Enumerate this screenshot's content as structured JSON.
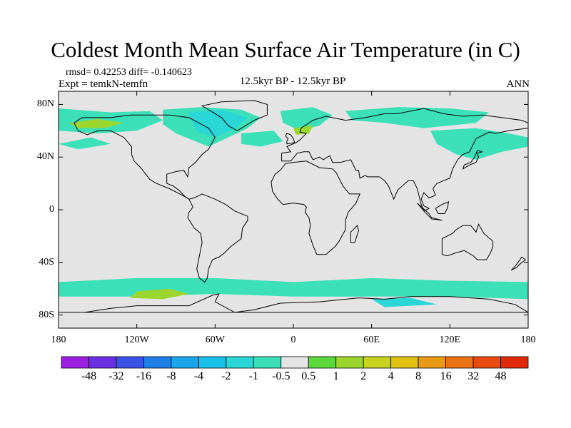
{
  "title": "Coldest Month Mean Surface Air Temperature (in C)",
  "stats": "rmsd= 0.42253 diff= -0.140623",
  "experiment": "Expt = temkN-temfn",
  "period": "12.5kyr BP - 12.5kyr BP",
  "season": "ANN",
  "lat_labels": [
    "80N",
    "40N",
    "0",
    "40S",
    "80S"
  ],
  "lon_labels": [
    "180",
    "120W",
    "60W",
    "0",
    "60E",
    "120E",
    "180"
  ],
  "colorbar": {
    "labels": [
      "-48",
      "-32",
      "-16",
      "-8",
      "-4",
      "-2",
      "-1",
      "-0.5",
      "0.5",
      "1",
      "2",
      "4",
      "8",
      "16",
      "32",
      "48"
    ],
    "colors": [
      "#9b1fe0",
      "#6a2fe0",
      "#3a52e6",
      "#1f7fe8",
      "#1aa6ea",
      "#18c0e8",
      "#2ad6d6",
      "#3ce0b8",
      "#e4e4e4",
      "#5cd83a",
      "#9ad62e",
      "#c6d21e",
      "#e0c010",
      "#e89a14",
      "#ea7214",
      "#e84a10",
      "#e02a0a"
    ]
  },
  "map": {
    "background_color": "#e4e4e4",
    "cool_color": "#3ce0b8",
    "cooler_color": "#2ad6d6",
    "warm_color": "#9ad62e",
    "warmer_color": "#c6d21e",
    "coast_color": "#000000"
  }
}
